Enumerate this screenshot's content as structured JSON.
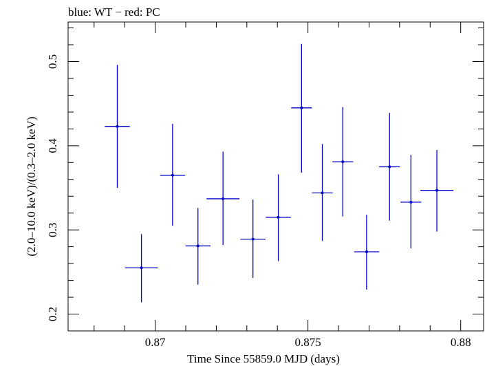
{
  "chart_data": {
    "type": "scatter",
    "title": "blue: WT − red: PC",
    "xlabel": "Time Since 55859.0 MJD (days)",
    "ylabel": "(2.0–10.0 keV)/(0.3–2.0 keV)",
    "xlim": [
      0.86715,
      0.88075
    ],
    "ylim": [
      0.18,
      0.547
    ],
    "x_ticks": [
      0.87,
      0.875,
      0.88
    ],
    "x_tick_labels": [
      "0.87",
      "0.875",
      "0.88"
    ],
    "y_ticks": [
      0.2,
      0.3,
      0.4,
      0.5
    ],
    "y_tick_labels": [
      "0.2",
      "0.3",
      "0.4",
      "0.5"
    ],
    "grid": false,
    "series": [
      {
        "color": "#0000cc",
        "points": [
          {
            "x": 0.86876,
            "xerr": 0.00041,
            "y": 0.423,
            "yerr_low": 0.073,
            "yerr_high": 0.073
          },
          {
            "x": 0.86955,
            "xerr": 0.00054,
            "y": 0.255,
            "yerr_low": 0.041,
            "yerr_high": 0.04
          },
          {
            "x": 0.87057,
            "xerr": 0.00041,
            "y": 0.365,
            "yerr_low": 0.06,
            "yerr_high": 0.061
          },
          {
            "x": 0.8714,
            "xerr": 0.00041,
            "y": 0.281,
            "yerr_low": 0.046,
            "yerr_high": 0.045
          },
          {
            "x": 0.87222,
            "xerr": 0.00054,
            "y": 0.337,
            "yerr_low": 0.055,
            "yerr_high": 0.056
          },
          {
            "x": 0.8732,
            "xerr": 0.00041,
            "y": 0.289,
            "yerr_low": 0.046,
            "yerr_high": 0.047
          },
          {
            "x": 0.87403,
            "xerr": 0.00041,
            "y": 0.315,
            "yerr_low": 0.052,
            "yerr_high": 0.051
          },
          {
            "x": 0.87479,
            "xerr": 0.00034,
            "y": 0.445,
            "yerr_low": 0.077,
            "yerr_high": 0.076
          },
          {
            "x": 0.87547,
            "xerr": 0.00034,
            "y": 0.344,
            "yerr_low": 0.057,
            "yerr_high": 0.058
          },
          {
            "x": 0.87614,
            "xerr": 0.00034,
            "y": 0.381,
            "yerr_low": 0.065,
            "yerr_high": 0.065
          },
          {
            "x": 0.87692,
            "xerr": 0.00041,
            "y": 0.274,
            "yerr_low": 0.045,
            "yerr_high": 0.044
          },
          {
            "x": 0.87767,
            "xerr": 0.00034,
            "y": 0.375,
            "yerr_low": 0.064,
            "yerr_high": 0.064
          },
          {
            "x": 0.87837,
            "xerr": 0.00034,
            "y": 0.333,
            "yerr_low": 0.055,
            "yerr_high": 0.056
          },
          {
            "x": 0.87922,
            "xerr": 0.00054,
            "y": 0.347,
            "yerr_low": 0.049,
            "yerr_high": 0.048
          }
        ]
      }
    ]
  }
}
